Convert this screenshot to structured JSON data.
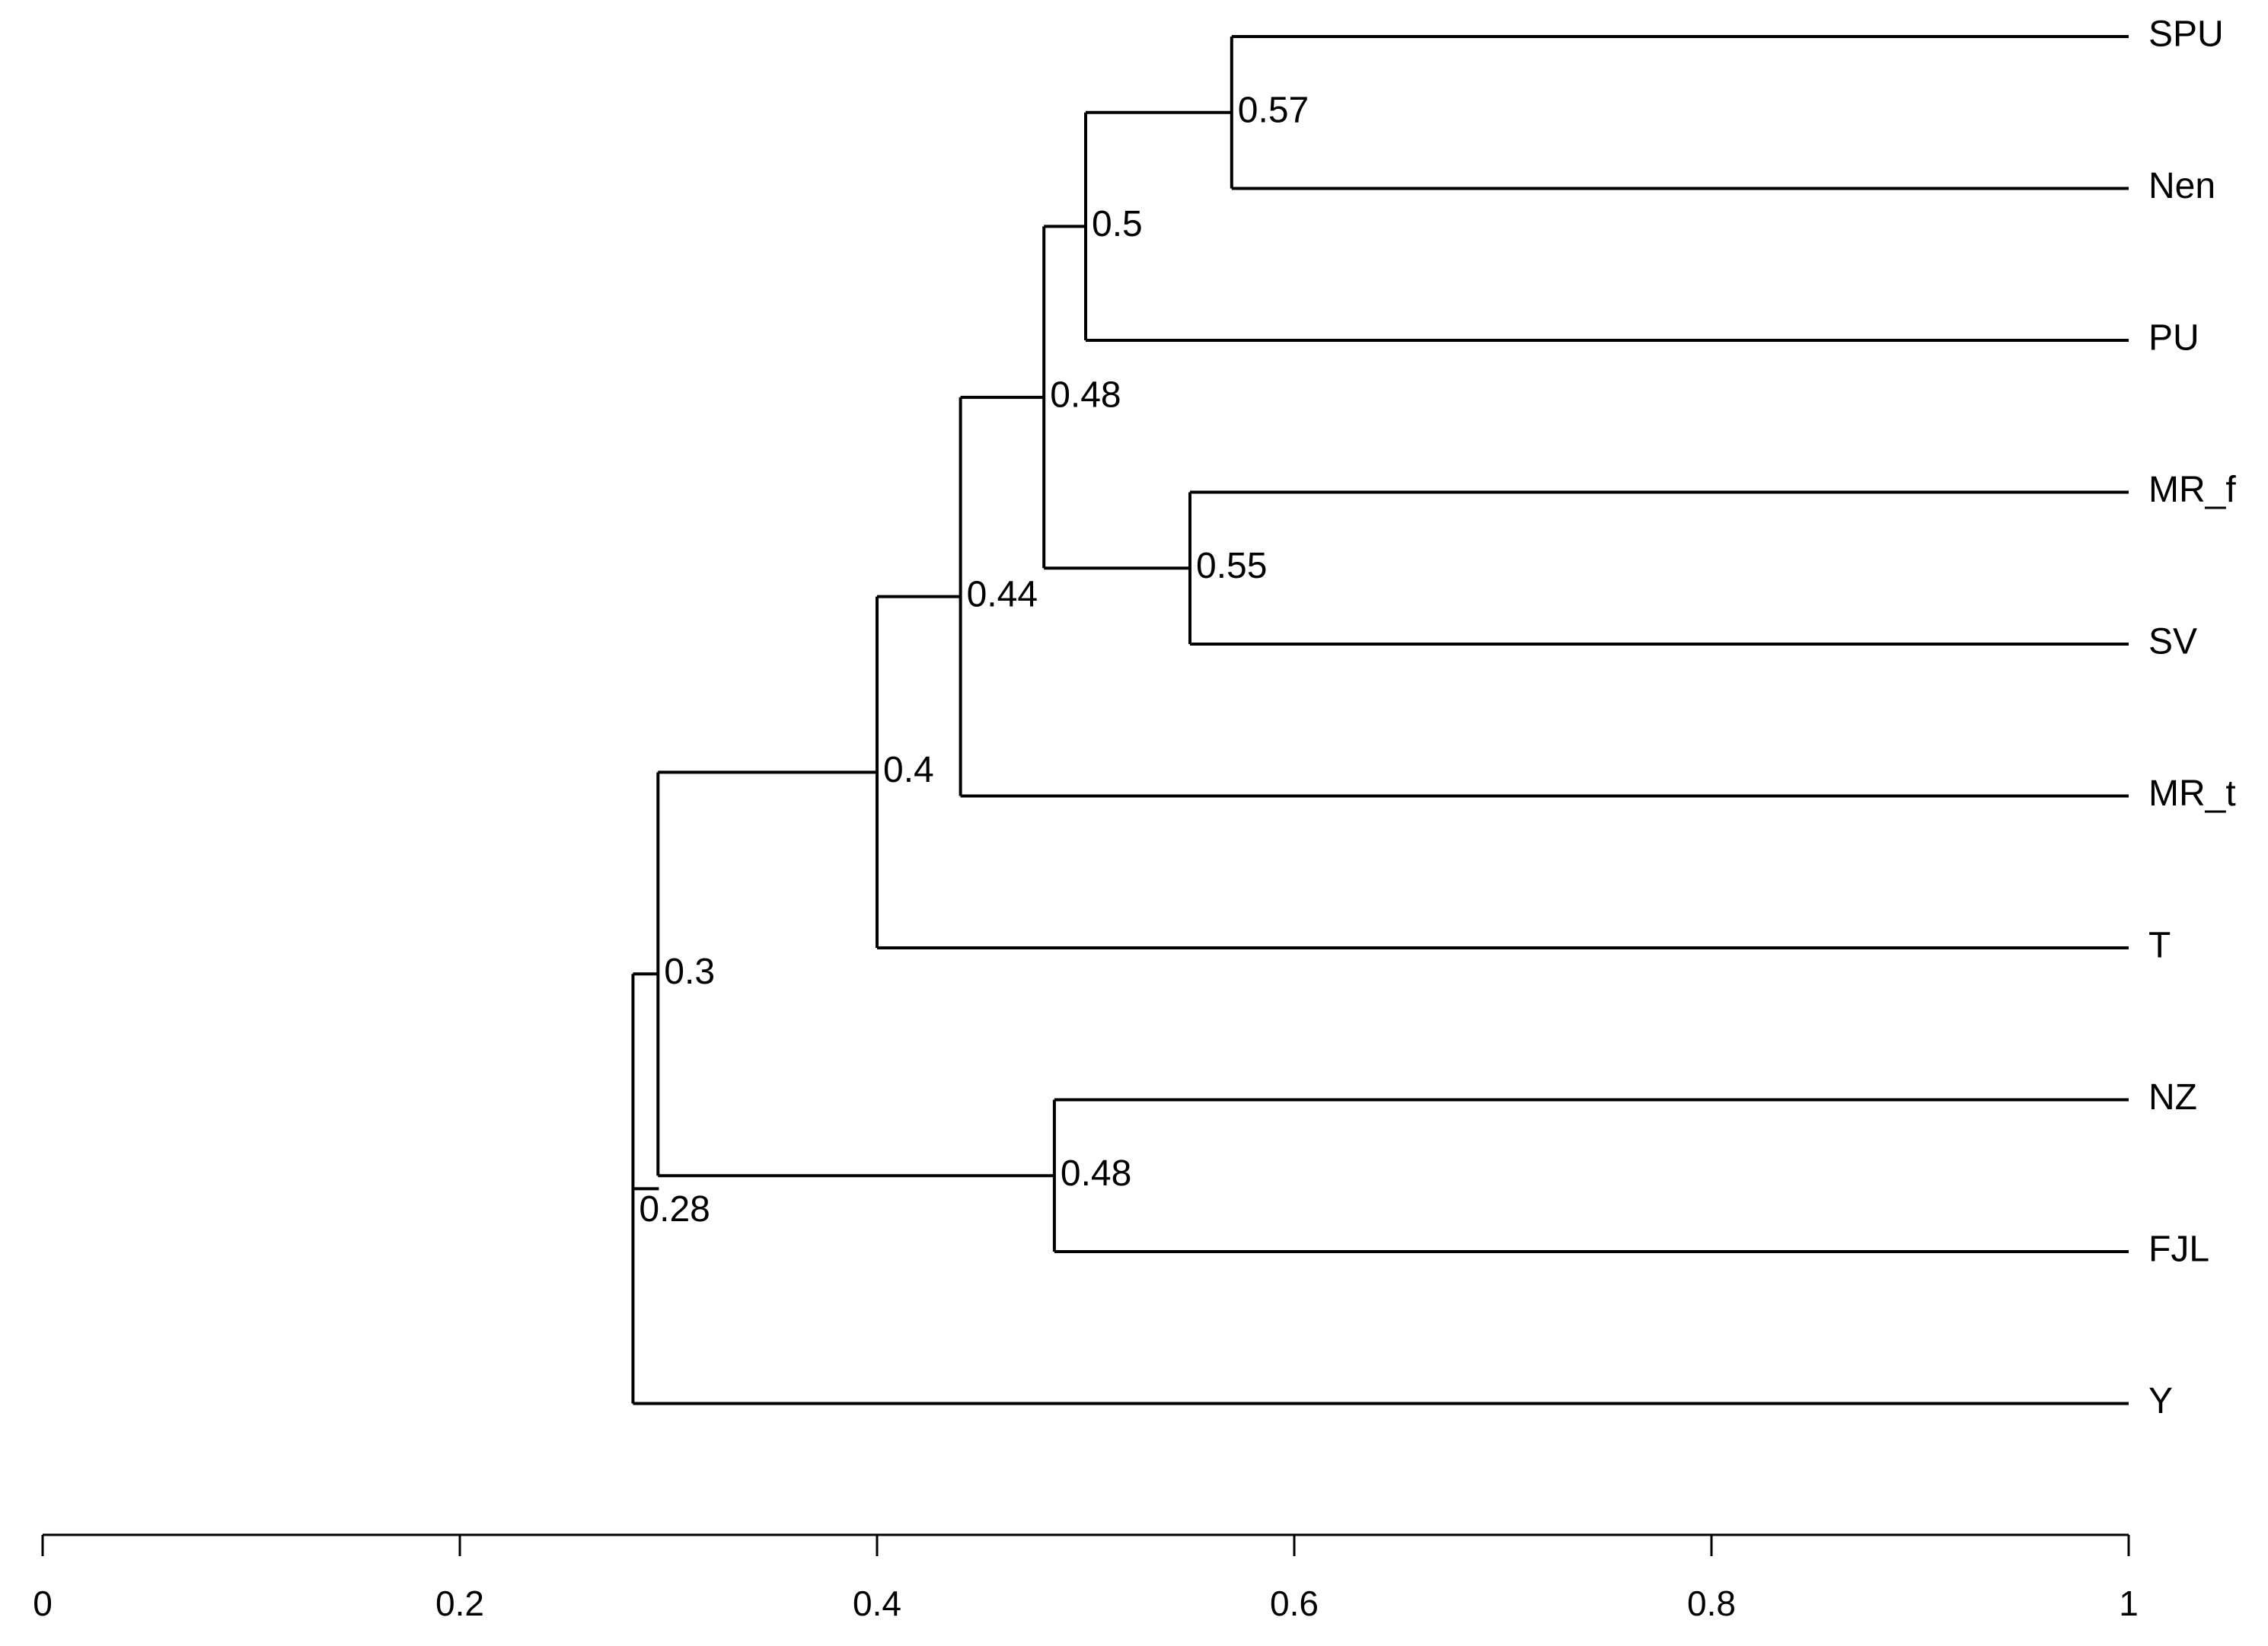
{
  "dendrogram": {
    "axis": {
      "min": 0,
      "max": 1,
      "ticks": [
        0,
        0.2,
        0.4,
        0.6,
        0.8,
        1
      ],
      "tick_labels": [
        "0",
        "0.2",
        "0.4",
        "0.6",
        "0.8",
        "1"
      ]
    },
    "leaves": [
      "SPU",
      "Nen",
      "PU",
      "MR_f",
      "SV",
      "MR_t",
      "T",
      "NZ",
      "FJL",
      "Y"
    ],
    "nodes": [
      {
        "id": "n1",
        "height": 0.57,
        "label": "0.57",
        "children": [
          "SPU",
          "Nen"
        ]
      },
      {
        "id": "n2",
        "height": 0.5,
        "label": "0.5",
        "children": [
          "n1",
          "PU"
        ]
      },
      {
        "id": "n3",
        "height": 0.55,
        "label": "0.55",
        "children": [
          "MR_f",
          "SV"
        ]
      },
      {
        "id": "n4",
        "height": 0.48,
        "label": "0.48",
        "children": [
          "n2",
          "n3"
        ]
      },
      {
        "id": "n5",
        "height": 0.44,
        "label": "0.44",
        "children": [
          "n4",
          "MR_t"
        ]
      },
      {
        "id": "n6",
        "height": 0.4,
        "label": "0.4",
        "children": [
          "n5",
          "T"
        ]
      },
      {
        "id": "n7",
        "height": 0.485,
        "label": "0.48",
        "children": [
          "NZ",
          "FJL"
        ]
      },
      {
        "id": "n8",
        "height": 0.295,
        "label": "0.3",
        "children": [
          "n6",
          "n7"
        ]
      },
      {
        "id": "n9",
        "height": 0.283,
        "label": "0.28",
        "children": [
          "n8",
          "Y"
        ]
      }
    ]
  }
}
